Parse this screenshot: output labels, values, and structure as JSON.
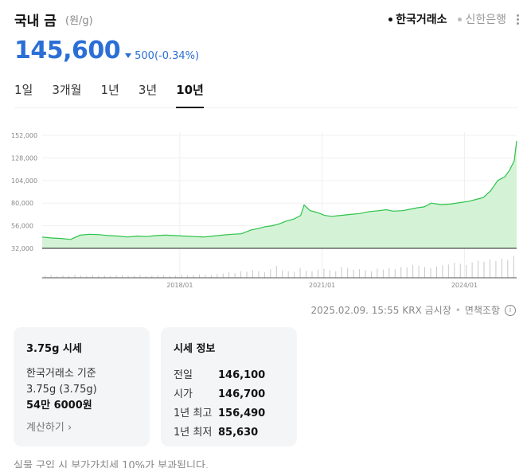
{
  "header": {
    "title": "국내 금",
    "unit": "(원/g)",
    "sources": [
      {
        "label": "한국거래소",
        "active": true
      },
      {
        "label": "신한은행",
        "active": false
      }
    ]
  },
  "price": {
    "current": "145,600",
    "change": "500",
    "change_pct": "(-0.34%)",
    "direction": "down",
    "color": "#2b6fd6"
  },
  "periods": [
    {
      "label": "1일",
      "active": false
    },
    {
      "label": "3개월",
      "active": false
    },
    {
      "label": "1년",
      "active": false
    },
    {
      "label": "3년",
      "active": false
    },
    {
      "label": "10년",
      "active": true
    }
  ],
  "chart_data": {
    "type": "area",
    "y_tick_labels": [
      "152,000",
      "128,000",
      "104,000",
      "80,000",
      "56,000",
      "32,000"
    ],
    "x_tick_labels": [
      "2018/01",
      "2021/01",
      "2024/01"
    ],
    "ylim": [
      32000,
      152000
    ],
    "xlim": [
      2015.1,
      2025.1
    ],
    "line_color": "#2bc34a",
    "fill_color": "#d4f3d6",
    "series": [
      {
        "x": [
          2015.1,
          2015.3,
          2015.5,
          2015.7,
          2015.9,
          2016.1,
          2016.3,
          2016.5,
          2016.7,
          2016.9,
          2017.1,
          2017.3,
          2017.5,
          2017.7,
          2017.9,
          2018.1,
          2018.3,
          2018.5,
          2018.7,
          2018.9,
          2019.1,
          2019.3,
          2019.5,
          2019.65,
          2019.8,
          2019.95,
          2020.1,
          2020.25,
          2020.4,
          2020.55,
          2020.62,
          2020.75,
          2020.9,
          2021.05,
          2021.2,
          2021.4,
          2021.6,
          2021.8,
          2022.0,
          2022.2,
          2022.35,
          2022.5,
          2022.7,
          2022.85,
          2023.0,
          2023.15,
          2023.3,
          2023.5,
          2023.7,
          2023.9,
          2024.1,
          2024.25,
          2024.4,
          2024.55,
          2024.7,
          2024.85,
          2024.95,
          2025.05,
          2025.1
        ],
        "values": [
          44000,
          43000,
          42500,
          41500,
          46000,
          47000,
          46500,
          45500,
          45000,
          44000,
          45000,
          44500,
          45500,
          46000,
          45500,
          45000,
          44500,
          44000,
          45000,
          46000,
          47000,
          47500,
          51500,
          53000,
          55000,
          56000,
          58000,
          61000,
          63000,
          67000,
          78000,
          72000,
          70000,
          67000,
          66000,
          67000,
          68000,
          69000,
          71000,
          72000,
          73000,
          71500,
          72000,
          73500,
          75000,
          76000,
          80000,
          78500,
          79000,
          80500,
          82000,
          84000,
          86000,
          93000,
          104000,
          108000,
          115000,
          125000,
          146000
        ]
      }
    ],
    "volume": [
      0.1,
      0.12,
      0.08,
      0.11,
      0.09,
      0.13,
      0.1,
      0.07,
      0.12,
      0.09,
      0.1,
      0.08,
      0.11,
      0.12,
      0.09,
      0.1,
      0.13,
      0.08,
      0.1,
      0.11,
      0.12,
      0.09,
      0.1,
      0.14,
      0.11,
      0.12,
      0.15,
      0.13,
      0.12,
      0.18,
      0.2,
      0.25,
      0.22,
      0.3,
      0.28,
      0.35,
      0.3,
      0.25,
      0.4,
      0.55,
      0.35,
      0.3,
      0.28,
      0.45,
      0.32,
      0.3,
      0.38,
      0.42,
      0.35,
      0.3,
      0.5,
      0.45,
      0.38,
      0.4,
      0.35,
      0.3,
      0.42,
      0.38,
      0.45,
      0.4,
      0.5,
      0.48,
      0.6,
      0.55,
      0.5,
      0.45,
      0.52,
      0.58,
      0.62,
      0.7,
      0.65,
      0.6,
      0.72,
      0.8,
      0.75,
      0.85,
      0.78,
      0.9,
      0.82,
      1.0
    ]
  },
  "footnote": {
    "timestamp": "2025.02.09. 15:55",
    "source": "KRX 금시장",
    "disclaimer": "면책조항",
    "info_icon": "i"
  },
  "card1": {
    "title": "3.75g 시세",
    "basis": "한국거래소 기준",
    "weight": "3.75g (3.75g)",
    "amount": "54만 6000원",
    "calc_link": "계산하기 ›"
  },
  "card2": {
    "title": "시세 정보",
    "rows": [
      {
        "label": "전일",
        "value": "146,100"
      },
      {
        "label": "시가",
        "value": "146,700"
      },
      {
        "label": "1년 최고",
        "value": "156,490"
      },
      {
        "label": "1년 최저",
        "value": "85,630"
      }
    ]
  },
  "bottom_note": "실물 구입 시 부가가치세 10%가 부과됩니다."
}
